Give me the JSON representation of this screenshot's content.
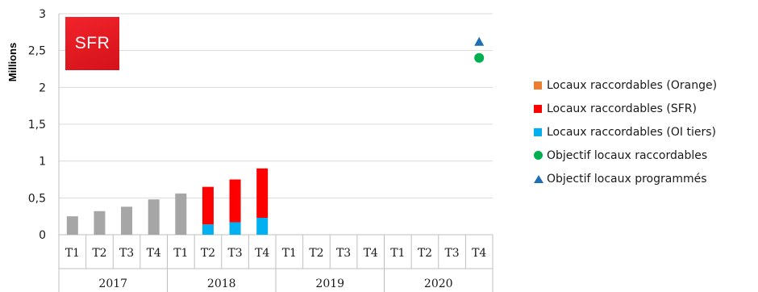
{
  "logo_text": "SFR",
  "colors": {
    "orange": "#ed7d31",
    "sfr": "#ff0000",
    "oi_tiers": "#00b0f0",
    "historic": "#a6a6a6",
    "objectif_raccordables": "#00b050",
    "objectif_programmes": "#1f6fb5"
  },
  "legend": [
    {
      "label": "Locaux raccordables (Orange)",
      "shape": "square",
      "color": "#ed7d31"
    },
    {
      "label": "Locaux raccordables (SFR)",
      "shape": "square",
      "color": "#ff0000"
    },
    {
      "label": "Locaux raccordables (OI tiers)",
      "shape": "square",
      "color": "#00b0f0"
    },
    {
      "label": "Objectif locaux raccordables",
      "shape": "circle",
      "color": "#00b050"
    },
    {
      "label": "Objectif locaux programmés",
      "shape": "triangle",
      "color": "#1f6fb5"
    }
  ],
  "chart_data": {
    "type": "bar",
    "stacked": true,
    "ylabel": "Millions",
    "ylim": [
      0,
      3
    ],
    "yticks": [
      "0",
      "0,5",
      "1",
      "1,5",
      "2",
      "2,5",
      "3"
    ],
    "grid": true,
    "legend_position": "right",
    "categories": [
      "T1",
      "T2",
      "T3",
      "T4",
      "T1",
      "T2",
      "T3",
      "T4",
      "T1",
      "T2",
      "T3",
      "T4",
      "T1",
      "T2",
      "T3",
      "T4"
    ],
    "years": [
      "2017",
      "2018",
      "2019",
      "2020"
    ],
    "series": [
      {
        "name": "",
        "color": "#a6a6a6",
        "values": [
          0.25,
          0.32,
          0.38,
          0.48,
          0.56,
          null,
          null,
          null,
          null,
          null,
          null,
          null,
          null,
          null,
          null,
          null
        ]
      },
      {
        "name": "Locaux raccordables (OI tiers)",
        "color": "#00b0f0",
        "values": [
          null,
          null,
          null,
          null,
          null,
          0.14,
          0.17,
          0.23,
          null,
          null,
          null,
          null,
          null,
          null,
          null,
          null
        ]
      },
      {
        "name": "Locaux raccordables (SFR)",
        "color": "#ff0000",
        "values": [
          null,
          null,
          null,
          null,
          null,
          0.51,
          0.58,
          0.67,
          null,
          null,
          null,
          null,
          null,
          null,
          null,
          null
        ]
      }
    ],
    "markers": [
      {
        "name": "Objectif locaux raccordables",
        "category_index": 15,
        "value": 2.4,
        "shape": "circle",
        "color": "#00b050"
      },
      {
        "name": "Objectif locaux programmés",
        "category_index": 15,
        "value": 2.62,
        "shape": "triangle",
        "color": "#1f6fb5"
      }
    ]
  }
}
